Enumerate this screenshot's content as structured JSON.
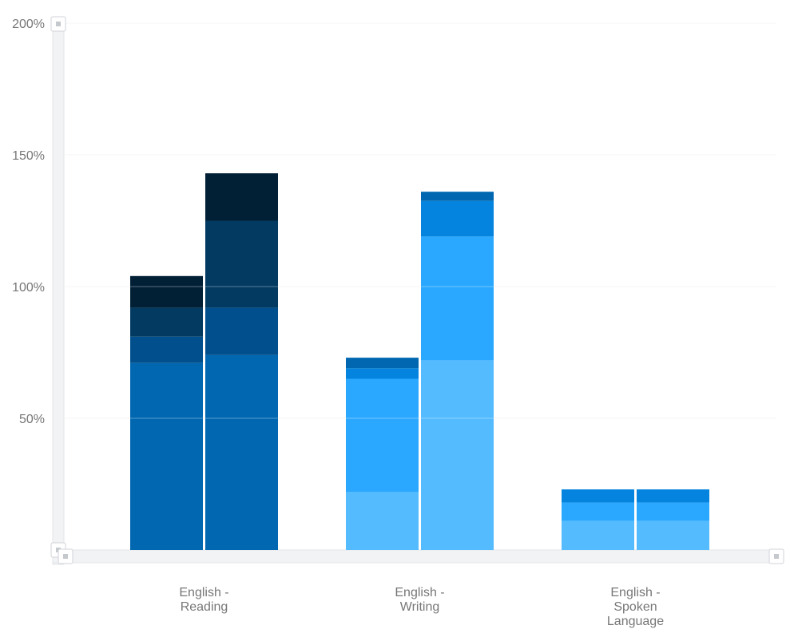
{
  "chart_data": {
    "type": "bar",
    "stacked": true,
    "grouped": true,
    "categories": [
      "English - Reading",
      "English - Writing",
      "English - Spoken Language"
    ],
    "category_label_lines": [
      [
        "English -",
        "Reading"
      ],
      [
        "English -",
        "Writing"
      ],
      [
        "English -",
        "Spoken",
        "Language"
      ]
    ],
    "y_ticks": [
      {
        "value": 50,
        "label": "50%"
      },
      {
        "value": 100,
        "label": "100%"
      },
      {
        "value": 150,
        "label": "150%"
      },
      {
        "value": 200,
        "label": "200%"
      }
    ],
    "ylim": [
      0,
      200
    ],
    "grid": true,
    "bars": [
      {
        "category": 0,
        "segments": [
          {
            "value": 71,
            "color": "#0067b0"
          },
          {
            "value": 10,
            "color": "#01508d"
          },
          {
            "value": 11,
            "color": "#023a61"
          },
          {
            "value": 12,
            "color": "#012036"
          }
        ]
      },
      {
        "category": 0,
        "segments": [
          {
            "value": 74,
            "color": "#0067b0"
          },
          {
            "value": 18,
            "color": "#01508d"
          },
          {
            "value": 33,
            "color": "#023a61"
          },
          {
            "value": 18,
            "color": "#012036"
          }
        ]
      },
      {
        "category": 1,
        "segments": [
          {
            "value": 22,
            "color": "#55bbff"
          },
          {
            "value": 43,
            "color": "#2aa8ff"
          },
          {
            "value": 4,
            "color": "#0484de"
          },
          {
            "value": 4,
            "color": "#0067b0"
          }
        ]
      },
      {
        "category": 1,
        "segments": [
          {
            "value": 72,
            "color": "#55bbff"
          },
          {
            "value": 47,
            "color": "#2aa8ff"
          },
          {
            "value": 13.5,
            "color": "#0484de"
          },
          {
            "value": 3.5,
            "color": "#0067b0"
          }
        ]
      },
      {
        "category": 2,
        "segments": [
          {
            "value": 11,
            "color": "#55bbff"
          },
          {
            "value": 7,
            "color": "#2aa8ff"
          },
          {
            "value": 5,
            "color": "#0484de"
          }
        ]
      },
      {
        "category": 2,
        "segments": [
          {
            "value": 11,
            "color": "#55bbff"
          },
          {
            "value": 7,
            "color": "#2aa8ff"
          },
          {
            "value": 5,
            "color": "#0484de"
          }
        ]
      }
    ]
  }
}
